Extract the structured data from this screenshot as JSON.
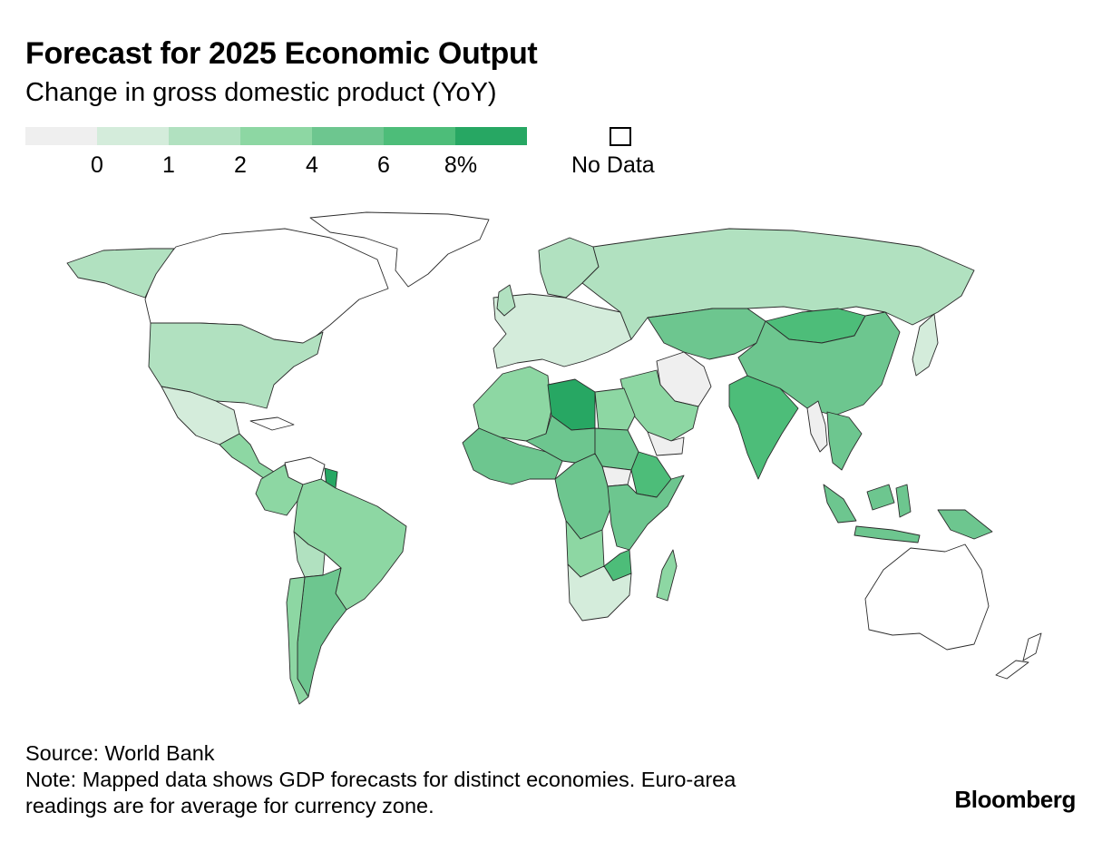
{
  "header": {
    "title": "Forecast for 2025 Economic Output",
    "subtitle": "Change in gross domestic product (YoY)"
  },
  "legend": {
    "bins": [
      {
        "range": "below 0",
        "color": "#efefef"
      },
      {
        "range": "0-1",
        "color": "#d4ecdb"
      },
      {
        "range": "1-2",
        "color": "#b1e1c0"
      },
      {
        "range": "2-4",
        "color": "#8dd7a3"
      },
      {
        "range": "4-6",
        "color": "#6dc68f"
      },
      {
        "range": "6-8",
        "color": "#4dbd79"
      },
      {
        "range": "8+",
        "color": "#27a763"
      }
    ],
    "ticks": [
      "0",
      "1",
      "2",
      "4",
      "6",
      "8%"
    ],
    "no_data_label": "No Data",
    "no_data_color": "#ffffff"
  },
  "map": {
    "regions": [
      {
        "name": "greenland",
        "bin": "no-data"
      },
      {
        "name": "canada",
        "bin": "no-data"
      },
      {
        "name": "alaska",
        "bin": "1-2"
      },
      {
        "name": "united-states",
        "bin": "1-2"
      },
      {
        "name": "mexico",
        "bin": "0-1"
      },
      {
        "name": "central-america",
        "bin": "2-4"
      },
      {
        "name": "cuba",
        "bin": "no-data"
      },
      {
        "name": "venezuela",
        "bin": "no-data"
      },
      {
        "name": "guyana",
        "bin": "8+"
      },
      {
        "name": "colombia",
        "bin": "2-4"
      },
      {
        "name": "brazil",
        "bin": "2-4"
      },
      {
        "name": "bolivia",
        "bin": "1-2"
      },
      {
        "name": "argentina",
        "bin": "4-6"
      },
      {
        "name": "chile",
        "bin": "2-4"
      },
      {
        "name": "europe",
        "bin": "0-1"
      },
      {
        "name": "scandinavia",
        "bin": "1-2"
      },
      {
        "name": "united-kingdom",
        "bin": "1-2"
      },
      {
        "name": "russia",
        "bin": "1-2"
      },
      {
        "name": "central-asia",
        "bin": "4-6"
      },
      {
        "name": "iran",
        "bin": "below 0"
      },
      {
        "name": "arabian-peninsula",
        "bin": "2-4"
      },
      {
        "name": "yemen",
        "bin": "below 0"
      },
      {
        "name": "india",
        "bin": "6-8"
      },
      {
        "name": "mongolia",
        "bin": "6-8"
      },
      {
        "name": "china",
        "bin": "4-6"
      },
      {
        "name": "myanmar",
        "bin": "below 0"
      },
      {
        "name": "southeast-asia",
        "bin": "4-6"
      },
      {
        "name": "japan",
        "bin": "0-1"
      },
      {
        "name": "indonesia",
        "bin": "4-6"
      },
      {
        "name": "papua-new-guinea",
        "bin": "4-6"
      },
      {
        "name": "australia",
        "bin": "no-data"
      },
      {
        "name": "new-zealand",
        "bin": "no-data"
      },
      {
        "name": "north-africa",
        "bin": "2-4"
      },
      {
        "name": "libya",
        "bin": "8+"
      },
      {
        "name": "egypt",
        "bin": "2-4"
      },
      {
        "name": "west-africa",
        "bin": "4-6"
      },
      {
        "name": "sahel",
        "bin": "4-6"
      },
      {
        "name": "sudan",
        "bin": "4-6"
      },
      {
        "name": "south-sudan",
        "bin": "below 0"
      },
      {
        "name": "ethiopia",
        "bin": "6-8"
      },
      {
        "name": "central-africa",
        "bin": "4-6"
      },
      {
        "name": "east-africa",
        "bin": "4-6"
      },
      {
        "name": "angola",
        "bin": "2-4"
      },
      {
        "name": "zimbabwe",
        "bin": "6-8"
      },
      {
        "name": "southern-africa",
        "bin": "0-1"
      },
      {
        "name": "madagascar",
        "bin": "2-4"
      }
    ]
  },
  "footer": {
    "source": "Source: World Bank",
    "note_line1": "Note: Mapped data shows GDP forecasts for distinct economies. Euro-area",
    "note_line2": "readings are for average for currency zone.",
    "brand": "Bloomberg"
  }
}
